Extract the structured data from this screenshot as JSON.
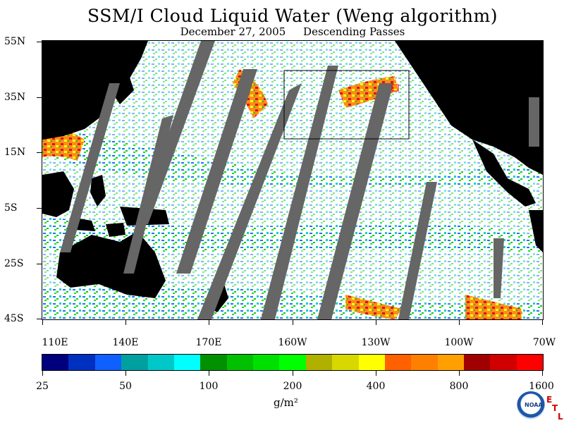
{
  "title": "SSM/I Cloud Liquid Water (Weng algorithm)",
  "subtitle_date": "December 27, 2005",
  "subtitle_pass": "Descending Passes",
  "y_axis_labels": [
    "55N",
    "35N",
    "15N",
    "5S",
    "25S",
    "45S"
  ],
  "x_axis_labels": [
    "110E",
    "140E",
    "170E",
    "160W",
    "130W",
    "100W",
    "70W"
  ],
  "colorbar_labels": [
    "25",
    "50",
    "100",
    "200",
    "400",
    "800",
    "1600"
  ],
  "colorbar_colors": [
    "#00007f",
    "#0030c0",
    "#1060ff",
    "#00a0a0",
    "#00c8c8",
    "#00ffff",
    "#009000",
    "#00c000",
    "#00e000",
    "#00ff00",
    "#b0b000",
    "#d8d800",
    "#ffff00",
    "#ff6000",
    "#ff8000",
    "#ffa000",
    "#a00000",
    "#d00000",
    "#ff0000"
  ],
  "units": "g/m²",
  "logo_text": "NOAA",
  "badge": [
    "E",
    "T",
    "L"
  ],
  "map_colors": {
    "land": "#000000",
    "gap": "#666666",
    "ocean": "#ffffff",
    "box": "#000000",
    "marker": "#ff0000"
  }
}
